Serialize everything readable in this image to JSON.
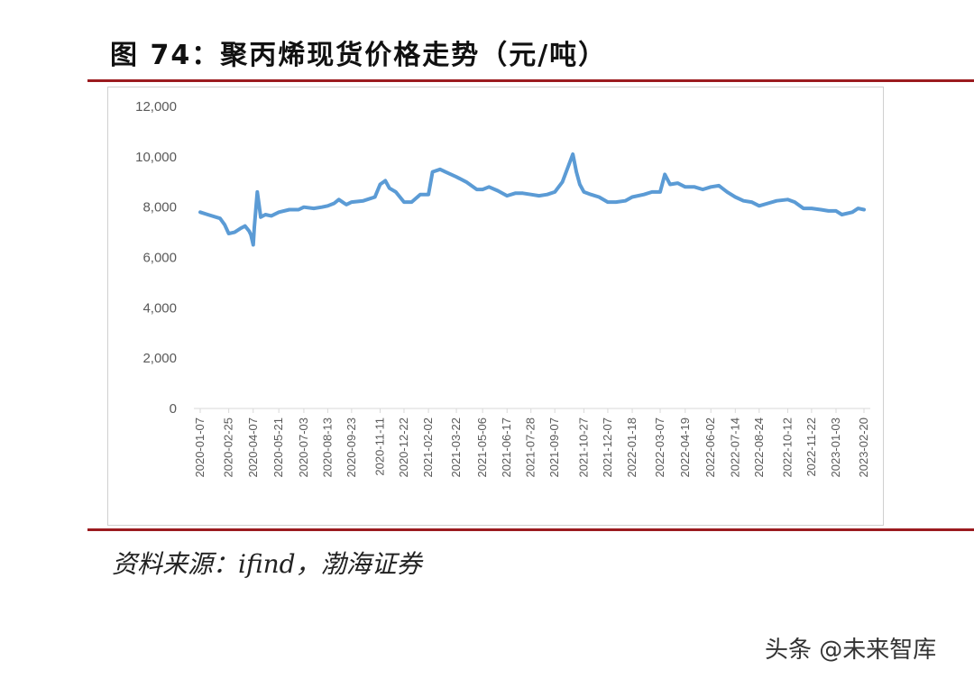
{
  "figure": {
    "title": "图 74：聚丙烯现货价格走势（元/吨）",
    "source": "资料来源：ifind，渤海证券",
    "watermark": "头条 @未来智库"
  },
  "chart_data": {
    "type": "line",
    "title": "图 74：聚丙烯现货价格走势（元/吨）",
    "xlabel": "",
    "ylabel": "",
    "ylim": [
      0,
      12000
    ],
    "yticks": [
      "0",
      "2,000",
      "4,000",
      "6,000",
      "8,000",
      "10,000",
      "12,000"
    ],
    "grid": false,
    "legend": "none",
    "line_color": "#5b9bd5",
    "x_tick_labels": [
      "2020-01-07",
      "2020-02-25",
      "2020-04-07",
      "2020-05-21",
      "2020-07-03",
      "2020-08-13",
      "2020-09-23",
      "2020-11-11",
      "2020-12-22",
      "2021-02-02",
      "2021-03-22",
      "2021-05-06",
      "2021-06-17",
      "2021-07-28",
      "2021-09-07",
      "2021-10-27",
      "2021-12-07",
      "2022-01-18",
      "2022-03-07",
      "2022-04-19",
      "2022-06-02",
      "2022-07-14",
      "2022-08-24",
      "2022-10-12",
      "2022-11-22",
      "2023-01-03",
      "2023-02-20"
    ],
    "series": [
      {
        "x": [
          "2020-01-07",
          "2020-01-20",
          "2020-02-10",
          "2020-02-18",
          "2020-02-25",
          "2020-03-06",
          "2020-03-16",
          "2020-03-24",
          "2020-03-31",
          "2020-04-03",
          "2020-04-07",
          "2020-04-09",
          "2020-04-14",
          "2020-04-20",
          "2020-04-28",
          "2020-05-08",
          "2020-05-21",
          "2020-06-08",
          "2020-06-24",
          "2020-07-03",
          "2020-07-20",
          "2020-08-03",
          "2020-08-13",
          "2020-08-24",
          "2020-09-01",
          "2020-09-14",
          "2020-09-23",
          "2020-10-13",
          "2020-11-02",
          "2020-11-11",
          "2020-11-20",
          "2020-11-27",
          "2020-12-08",
          "2020-12-22",
          "2021-01-04",
          "2021-01-19",
          "2021-02-02",
          "2021-02-09",
          "2021-02-22",
          "2021-03-03",
          "2021-03-22",
          "2021-04-08",
          "2021-04-26",
          "2021-05-06",
          "2021-05-17",
          "2021-06-01",
          "2021-06-17",
          "2021-07-01",
          "2021-07-14",
          "2021-07-28",
          "2021-08-11",
          "2021-08-25",
          "2021-09-07",
          "2021-09-20",
          "2021-10-08",
          "2021-10-14",
          "2021-10-20",
          "2021-10-27",
          "2021-11-08",
          "2021-11-22",
          "2021-12-07",
          "2021-12-21",
          "2022-01-06",
          "2022-01-18",
          "2022-02-07",
          "2022-02-21",
          "2022-03-07",
          "2022-03-15",
          "2022-03-24",
          "2022-04-06",
          "2022-04-19",
          "2022-05-05",
          "2022-05-19",
          "2022-06-02",
          "2022-06-16",
          "2022-06-30",
          "2022-07-14",
          "2022-07-28",
          "2022-08-11",
          "2022-08-24",
          "2022-09-08",
          "2022-09-23",
          "2022-10-12",
          "2022-10-24",
          "2022-11-08",
          "2022-11-22",
          "2022-12-08",
          "2022-12-21",
          "2023-01-03",
          "2023-01-13",
          "2023-01-31",
          "2023-02-10",
          "2023-02-20"
        ],
        "values": [
          7800,
          7700,
          7550,
          7300,
          6950,
          7000,
          7150,
          7250,
          7050,
          6900,
          6500,
          7200,
          8600,
          7600,
          7700,
          7650,
          7800,
          7900,
          7900,
          8000,
          7950,
          8000,
          8050,
          8150,
          8300,
          8100,
          8200,
          8250,
          8400,
          8900,
          9050,
          8750,
          8600,
          8200,
          8200,
          8500,
          8500,
          9400,
          9500,
          9400,
          9200,
          9000,
          8700,
          8700,
          8800,
          8650,
          8450,
          8550,
          8550,
          8500,
          8450,
          8500,
          8600,
          9000,
          10100,
          9400,
          8900,
          8600,
          8500,
          8400,
          8200,
          8200,
          8250,
          8400,
          8500,
          8600,
          8600,
          9300,
          8900,
          8950,
          8800,
          8800,
          8700,
          8800,
          8850,
          8600,
          8400,
          8250,
          8200,
          8050,
          8150,
          8250,
          8300,
          8200,
          7950,
          7950,
          7900,
          7850,
          7850,
          7700,
          7800,
          7950,
          7900
        ]
      }
    ]
  }
}
